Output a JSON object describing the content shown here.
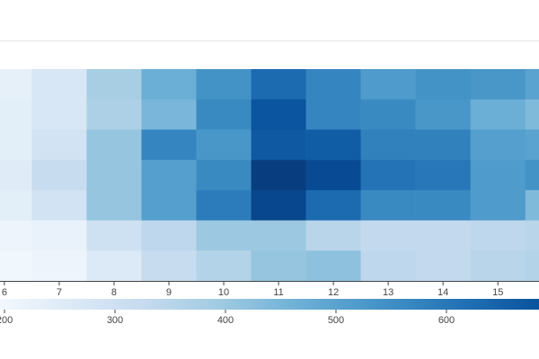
{
  "chart_data": {
    "type": "heatmap",
    "x": [
      6,
      7,
      8,
      9,
      10,
      11,
      12,
      13,
      14,
      15,
      16
    ],
    "xlim": [
      5.92,
      15.75
    ],
    "xticks": [
      6,
      7,
      8,
      9,
      10,
      11,
      12,
      13,
      14,
      15
    ],
    "z": [
      [
        230,
        270,
        380,
        470,
        540,
        630,
        570,
        520,
        540,
        530,
        500
      ],
      [
        240,
        270,
        370,
        450,
        560,
        680,
        570,
        560,
        530,
        470,
        440
      ],
      [
        240,
        290,
        410,
        570,
        530,
        670,
        660,
        580,
        580,
        510,
        500
      ],
      [
        250,
        320,
        410,
        510,
        560,
        730,
        700,
        610,
        600,
        520,
        540
      ],
      [
        240,
        290,
        410,
        510,
        590,
        710,
        630,
        560,
        560,
        520,
        440
      ],
      [
        210,
        220,
        300,
        340,
        400,
        400,
        350,
        330,
        330,
        340,
        350
      ],
      [
        200,
        210,
        260,
        320,
        360,
        410,
        420,
        340,
        330,
        350,
        360
      ]
    ],
    "clim": [
      180,
      760
    ],
    "colorscale": [
      "#f7fbff",
      "#deebf7",
      "#c6dbef",
      "#9ecae1",
      "#6baed6",
      "#4292c6",
      "#2171b5",
      "#08519c",
      "#08306b"
    ],
    "cticks": [
      200,
      300,
      400,
      500,
      600
    ]
  }
}
